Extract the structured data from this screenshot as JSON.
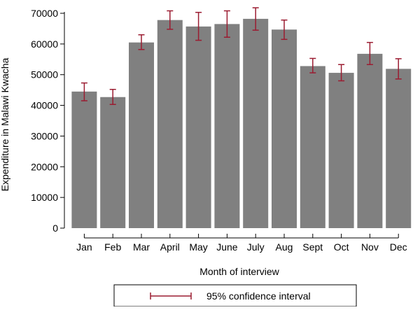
{
  "chart_data": {
    "type": "bar",
    "title": "",
    "xlabel": "Month of interview",
    "ylabel": "Expenditure in Malawi Kwacha",
    "categories": [
      "Jan",
      "Feb",
      "Mar",
      "April",
      "May",
      "June",
      "July",
      "Aug",
      "Sept",
      "Oct",
      "Nov",
      "Dec"
    ],
    "values": [
      44500,
      42700,
      60500,
      67800,
      65700,
      66500,
      68200,
      64700,
      52800,
      50600,
      56800,
      51900
    ],
    "error_bars": {
      "lower": [
        41500,
        40300,
        58200,
        64800,
        61200,
        62200,
        64500,
        61500,
        50600,
        48000,
        53300,
        48600
      ],
      "upper": [
        47300,
        45200,
        63000,
        70800,
        70300,
        70800,
        71800,
        67800,
        55300,
        53300,
        60500,
        55200
      ]
    },
    "ylim": [
      0,
      70000
    ],
    "yticks": [
      0,
      10000,
      20000,
      30000,
      40000,
      50000,
      60000,
      70000
    ],
    "grid": false,
    "legend": {
      "position": "bottom",
      "entries": [
        "95% confidence interval"
      ]
    },
    "colors": {
      "bar": "#808080",
      "error_bar": "#9b1c31",
      "axis": "#000000"
    }
  }
}
